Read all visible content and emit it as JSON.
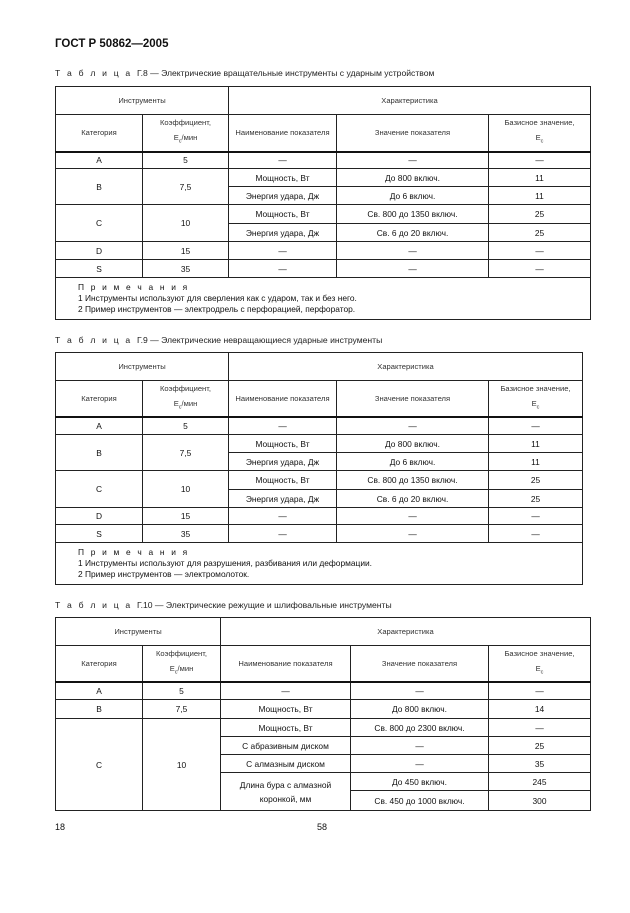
{
  "title": "ГОСТ Р 50862—2005",
  "footer": {
    "left": "18",
    "center": "58"
  },
  "tables": [
    {
      "label": "Т а б л и ц а",
      "caption": "Г.8 — Электрические вращательные инструменты с ударным устройством",
      "group_headers": [
        "Инструменты",
        "Характеристика"
      ],
      "columns": [
        {
          "text": "Категория"
        },
        {
          "text": "Коэффициент,",
          "symbol": "E",
          "subscript": "c",
          "suffix": "/мин"
        },
        {
          "text": "Наименование показателя"
        },
        {
          "text": "Значение показателя"
        },
        {
          "text": "Базисное значение,",
          "symbol": "E",
          "subscript": "c",
          "suffix": ""
        }
      ],
      "rows": [
        [
          {
            "t": "A"
          },
          {
            "t": "5"
          },
          {
            "t": "—"
          },
          {
            "t": "—"
          },
          {
            "t": "—"
          }
        ],
        [
          {
            "t": "B",
            "rowspan": 2
          },
          {
            "t": "7,5",
            "rowspan": 2
          },
          {
            "t": "Мощность, Вт"
          },
          {
            "t": "До 800 включ."
          },
          {
            "t": "11"
          }
        ],
        [
          {
            "t": "Энергия удара, Дж"
          },
          {
            "t": "До 6 включ."
          },
          {
            "t": "11"
          }
        ],
        [
          {
            "t": "C",
            "rowspan": 2
          },
          {
            "t": "10",
            "rowspan": 2
          },
          {
            "t": "Мощность, Вт"
          },
          {
            "t": "Св. 800 до 1350 включ."
          },
          {
            "t": "25"
          }
        ],
        [
          {
            "t": "Энергия удара, Дж"
          },
          {
            "t": "Св. 6 до 20 включ."
          },
          {
            "t": "25"
          }
        ],
        [
          {
            "t": "D"
          },
          {
            "t": "15"
          },
          {
            "t": "—"
          },
          {
            "t": "—"
          },
          {
            "t": "—"
          }
        ],
        [
          {
            "t": "S"
          },
          {
            "t": "35"
          },
          {
            "t": "—"
          },
          {
            "t": "—"
          },
          {
            "t": "—"
          }
        ]
      ],
      "notes_title": "П р и м е ч а н и я",
      "notes": [
        "1  Инструменты используют для сверления как с ударом, так и без него.",
        "2  Пример инструментов — электродрель с перфорацией, перфоратор."
      ]
    },
    {
      "label": "Т а б л и ц а",
      "caption": "Г.9 — Электрические невращающиеся ударные инструменты",
      "group_headers": [
        "Инструменты",
        "Характеристика"
      ],
      "columns": [
        {
          "text": "Категория"
        },
        {
          "text": "Коэффициент,",
          "symbol": "E",
          "subscript": "c",
          "suffix": "/мин"
        },
        {
          "text": "Наименование показателя"
        },
        {
          "text": "Значение показателя"
        },
        {
          "text": "Базисное значение,",
          "symbol": "E",
          "subscript": "c",
          "suffix": ""
        }
      ],
      "rows": [
        [
          {
            "t": "A"
          },
          {
            "t": "5"
          },
          {
            "t": "—"
          },
          {
            "t": "—"
          },
          {
            "t": "—"
          }
        ],
        [
          {
            "t": "B",
            "rowspan": 2
          },
          {
            "t": "7,5",
            "rowspan": 2
          },
          {
            "t": "Мощность, Вт"
          },
          {
            "t": "До 800 включ."
          },
          {
            "t": "11"
          }
        ],
        [
          {
            "t": "Энергия удара, Дж"
          },
          {
            "t": "До 6 включ."
          },
          {
            "t": "11"
          }
        ],
        [
          {
            "t": "C",
            "rowspan": 2
          },
          {
            "t": "10",
            "rowspan": 2
          },
          {
            "t": "Мощность, Вт"
          },
          {
            "t": "Св. 800 до 1350 включ."
          },
          {
            "t": "25"
          }
        ],
        [
          {
            "t": "Энергия удара, Дж"
          },
          {
            "t": "Св. 6 до 20 включ."
          },
          {
            "t": "25"
          }
        ],
        [
          {
            "t": "D"
          },
          {
            "t": "15"
          },
          {
            "t": "—"
          },
          {
            "t": "—"
          },
          {
            "t": "—"
          }
        ],
        [
          {
            "t": "S"
          },
          {
            "t": "35"
          },
          {
            "t": "—"
          },
          {
            "t": "—"
          },
          {
            "t": "—"
          }
        ]
      ],
      "notes_title": "П р и м е ч а н и я",
      "notes": [
        "1  Инструменты используют для разрушения, разбивания или деформации.",
        "2  Пример инструментов — электромолоток."
      ]
    },
    {
      "label": "Т а б л и ц а",
      "caption": "Г.10 — Электрические режущие и шлифовальные инструменты",
      "group_headers": [
        "Инструменты",
        "Характеристика"
      ],
      "columns": [
        {
          "text": "Категория"
        },
        {
          "text": "Коэффициент,",
          "symbol": "E",
          "subscript": "c",
          "suffix": "/мин"
        },
        {
          "text": "Наименование показателя"
        },
        {
          "text": "Значение показателя"
        },
        {
          "text": "Базисное значение,",
          "symbol": "E",
          "subscript": "c",
          "suffix": ""
        }
      ],
      "rows": [
        [
          {
            "t": "A"
          },
          {
            "t": "5"
          },
          {
            "t": "—"
          },
          {
            "t": "—"
          },
          {
            "t": "—"
          }
        ],
        [
          {
            "t": "B"
          },
          {
            "t": "7,5"
          },
          {
            "t": "Мощность, Вт"
          },
          {
            "t": "До 800 включ."
          },
          {
            "t": "14"
          }
        ],
        [
          {
            "t": "C",
            "rowspan": 5
          },
          {
            "t": "10",
            "rowspan": 5
          },
          {
            "t": "Мощность, Вт"
          },
          {
            "t": "Св. 800 до 2300 включ."
          },
          {
            "t": "—"
          }
        ],
        [
          {
            "t": "С абразивным диском"
          },
          {
            "t": "—"
          },
          {
            "t": "25"
          }
        ],
        [
          {
            "t": "С алмазным диском"
          },
          {
            "t": "—"
          },
          {
            "t": "35"
          }
        ],
        [
          {
            "t": "Длина бура с алмазной коронкой, мм",
            "rowspan": 2
          },
          {
            "t": "До 450 включ."
          },
          {
            "t": "245"
          }
        ],
        [
          {
            "t": "Св. 450 до 1000 включ."
          },
          {
            "t": "300"
          }
        ]
      ],
      "notes_title": "",
      "notes": []
    }
  ]
}
